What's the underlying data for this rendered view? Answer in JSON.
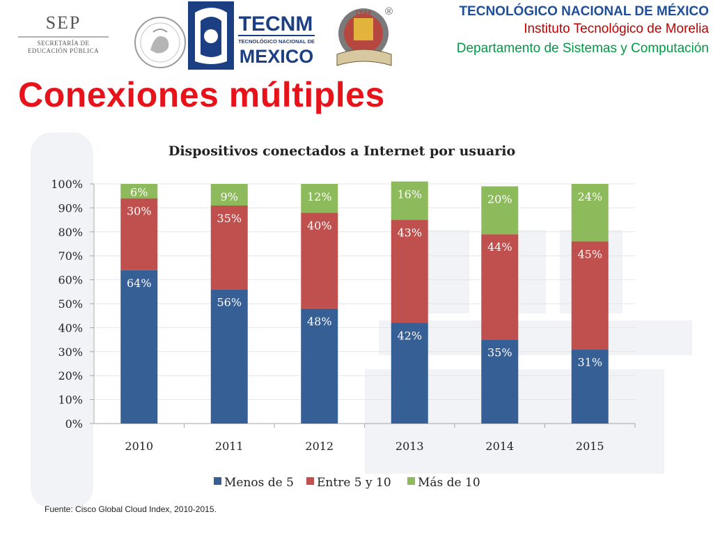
{
  "header": {
    "sep": {
      "word": "SEP",
      "line1": "SECRETARÍA DE",
      "line2": "EDUCACIÓN PÚBLICA"
    },
    "tecnm": {
      "word": "TECNM",
      "line1": "TECNOLÓGICO NACIONAL DE",
      "word2": "MEXICO"
    },
    "itm": {
      "word": "ITM"
    },
    "registered": "®",
    "line1": "TECNOLÓGICO NACIONAL DE MÉXICO",
    "line2": "Instituto Tecnológico de Morelia",
    "line3": "Departamento de Sistemas y Computación"
  },
  "slide": {
    "title": "Conexiones múltiples",
    "footnote": "Fuente: Cisco Global Cloud Index, 2010-2015."
  },
  "colors": {
    "menos5": "#365f95",
    "entre5y10": "#c0504d",
    "mas10": "#8dba5a",
    "title_red": "#e8121a",
    "header_blue": "#1f4e9a",
    "header_red": "#c00000",
    "header_green": "#009a44"
  },
  "chart_data": {
    "type": "bar",
    "stacked": true,
    "title": "Dispositivos conectados a Internet por usuario",
    "categories": [
      "2010",
      "2011",
      "2012",
      "2013",
      "2014",
      "2015"
    ],
    "y_ticks": [
      "0%",
      "10%",
      "20%",
      "30%",
      "40%",
      "50%",
      "60%",
      "70%",
      "80%",
      "90%",
      "100%"
    ],
    "ylim": [
      0,
      100
    ],
    "grid": true,
    "legend_position": "bottom",
    "series": [
      {
        "name": "Menos de 5",
        "values": [
          64,
          56,
          48,
          42,
          35,
          31
        ],
        "labels": [
          "64%",
          "56%",
          "48%",
          "42%",
          "35%",
          "31%"
        ]
      },
      {
        "name": "Entre 5 y 10",
        "values": [
          30,
          35,
          40,
          43,
          44,
          45
        ],
        "labels": [
          "30%",
          "35%",
          "40%",
          "43%",
          "44%",
          "45%"
        ]
      },
      {
        "name": "Más de 10",
        "values": [
          6,
          9,
          12,
          16,
          20,
          24
        ],
        "labels": [
          "6%",
          "9%",
          "12%",
          "16%",
          "20%",
          "24%"
        ]
      }
    ]
  }
}
